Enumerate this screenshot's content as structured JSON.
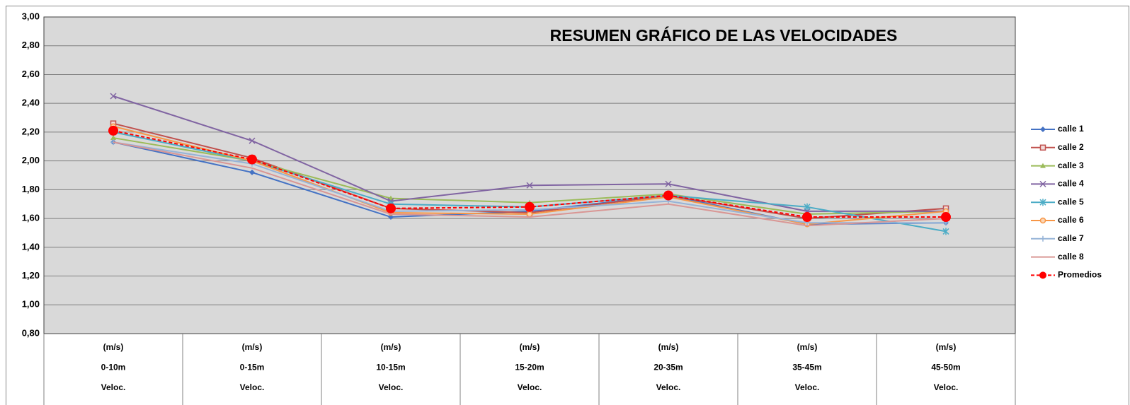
{
  "chart_data": {
    "type": "line",
    "title": "RESUMEN GRÁFICO DE LAS VELOCIDADES",
    "categories": [
      [
        "(m/s)",
        "0-10m",
        "Veloc."
      ],
      [
        "(m/s)",
        "0-15m",
        "Veloc."
      ],
      [
        "(m/s)",
        "10-15m",
        "Veloc."
      ],
      [
        "(m/s)",
        "15-20m",
        "Veloc."
      ],
      [
        "(m/s)",
        "20-35m",
        "Veloc."
      ],
      [
        "(m/s)",
        "35-45m",
        "Veloc."
      ],
      [
        "(m/s)",
        "45-50m",
        "Veloc."
      ]
    ],
    "ylim": [
      0.8,
      3.0
    ],
    "yticks": [
      {
        "value": 0.8,
        "label": "0,80"
      },
      {
        "value": 1.0,
        "label": "1,00"
      },
      {
        "value": 1.2,
        "label": "1,20"
      },
      {
        "value": 1.4,
        "label": "1,40"
      },
      {
        "value": 1.6,
        "label": "1,60"
      },
      {
        "value": 1.8,
        "label": "1,80"
      },
      {
        "value": 2.0,
        "label": "2,00"
      },
      {
        "value": 2.2,
        "label": "2,20"
      },
      {
        "value": 2.4,
        "label": "2,40"
      },
      {
        "value": 2.6,
        "label": "2,60"
      },
      {
        "value": 2.8,
        "label": "2,80"
      },
      {
        "value": 3.0,
        "label": "3,00"
      }
    ],
    "grid": true,
    "legend": "right",
    "series": [
      {
        "name": "calle 1",
        "color": "#4472c4",
        "marker": "diamond",
        "values": [
          2.13,
          1.92,
          1.61,
          1.65,
          1.76,
          1.56,
          1.57
        ]
      },
      {
        "name": "calle 2",
        "color": "#c0504d",
        "marker": "square",
        "values": [
          2.26,
          2.02,
          1.67,
          1.64,
          1.76,
          1.6,
          1.67
        ]
      },
      {
        "name": "calle 3",
        "color": "#9bbb59",
        "marker": "triangle",
        "values": [
          2.16,
          2.0,
          1.74,
          1.71,
          1.77,
          1.63,
          1.65
        ]
      },
      {
        "name": "calle 4",
        "color": "#8064a2",
        "marker": "x",
        "values": [
          2.45,
          2.14,
          1.72,
          1.83,
          1.84,
          1.65,
          1.65
        ]
      },
      {
        "name": "calle 5",
        "color": "#4bacc6",
        "marker": "star",
        "values": [
          2.2,
          2.0,
          1.7,
          1.68,
          1.76,
          1.68,
          1.51
        ]
      },
      {
        "name": "calle 6",
        "color": "#f79646",
        "marker": "circle",
        "values": [
          2.24,
          2.0,
          1.64,
          1.63,
          1.75,
          1.56,
          1.65
        ]
      },
      {
        "name": "calle 7",
        "color": "#95b3d7",
        "marker": "plus",
        "values": [
          2.13,
          1.98,
          1.65,
          1.66,
          1.72,
          1.57,
          1.57
        ]
      },
      {
        "name": "calle 8",
        "color": "#d99694",
        "marker": "none",
        "values": [
          2.13,
          1.95,
          1.63,
          1.61,
          1.7,
          1.55,
          1.6
        ]
      },
      {
        "name": "Promedios",
        "color": "#ff0000",
        "marker": "bigcircle",
        "dash": true,
        "values": [
          2.21,
          2.01,
          1.67,
          1.68,
          1.76,
          1.61,
          1.61
        ]
      }
    ]
  }
}
